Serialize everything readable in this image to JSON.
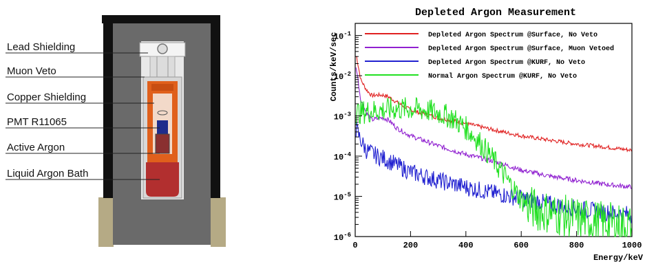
{
  "detector": {
    "labels": [
      "Lead Shielding",
      "Muon Veto",
      "Copper Shielding",
      "PMT R11065",
      "Active Argon",
      "Liquid Argon Bath"
    ],
    "colors": {
      "lead": "#666666",
      "outer_frame": "#111111",
      "copper": "#e0601c",
      "argon_bath": "#b22f2f",
      "ground": "#b5aa85",
      "pmt": "#1f2c8c"
    }
  },
  "chart_data": {
    "type": "line",
    "title": "Depleted Argon Measurement",
    "xlabel": "Energy/keV",
    "ylabel": "Counts/keV/sec",
    "xlim": [
      0,
      1000
    ],
    "ylim": [
      1e-06,
      0.2
    ],
    "yscale": "log",
    "x_ticks": [
      0,
      200,
      400,
      600,
      800,
      1000
    ],
    "y_ticks": [
      {
        "exp": -6,
        "label": "10",
        "sup": "-6"
      },
      {
        "exp": -5,
        "label": "10",
        "sup": "-5"
      },
      {
        "exp": -4,
        "label": "10",
        "sup": "-4"
      },
      {
        "exp": -3,
        "label": "10",
        "sup": "-3"
      },
      {
        "exp": -2,
        "label": "10",
        "sup": "-2"
      },
      {
        "exp": -1,
        "label": "10",
        "sup": "-1"
      }
    ],
    "legend_position": "top-right",
    "series": [
      {
        "name": "Depleted Argon Spectrum @Surface, No Veto",
        "color": "#e02020",
        "x": [
          5,
          20,
          40,
          60,
          80,
          100,
          120,
          150,
          200,
          300,
          400,
          500,
          600,
          700,
          800,
          900,
          1000
        ],
        "y": [
          0.03,
          0.008,
          0.0045,
          0.0032,
          0.0033,
          0.0033,
          0.003,
          0.0022,
          0.0014,
          0.0009,
          0.00065,
          0.00045,
          0.00032,
          0.00025,
          0.0002,
          0.00017,
          0.00014
        ]
      },
      {
        "name": "Depleted Argon Spectrum @Surface, Muon Vetoed",
        "color": "#9020d0",
        "x": [
          5,
          20,
          40,
          60,
          80,
          100,
          120,
          150,
          200,
          300,
          400,
          500,
          600,
          700,
          800,
          900,
          1000
        ],
        "y": [
          0.015,
          0.0025,
          0.0012,
          0.0008,
          0.00085,
          0.0009,
          0.0008,
          0.0005,
          0.00032,
          0.00018,
          0.00011,
          7.5e-05,
          4.5e-05,
          3.2e-05,
          2.5e-05,
          2e-05,
          1.7e-05
        ]
      },
      {
        "name": "Depleted Argon Spectrum @KURF, No Veto",
        "color": "#2020d0",
        "x": [
          5,
          20,
          40,
          60,
          80,
          100,
          150,
          200,
          300,
          400,
          500,
          600,
          700,
          800,
          900,
          1000
        ],
        "y": [
          0.00045,
          0.00025,
          0.00014,
          0.00012,
          0.0001,
          9e-05,
          6e-05,
          4e-05,
          2.5e-05,
          1.7e-05,
          1.2e-05,
          9e-06,
          6.5e-06,
          5e-06,
          4e-06,
          3.5e-06
        ]
      },
      {
        "name": "Normal Argon Spectrum @KURF, No Veto",
        "color": "#20e020",
        "x": [
          5,
          50,
          100,
          150,
          200,
          250,
          300,
          350,
          400,
          450,
          500,
          530,
          560,
          600,
          630,
          660,
          700,
          750,
          800,
          850,
          900,
          950,
          1000
        ],
        "y": [
          0.0012,
          0.0013,
          0.0014,
          0.0015,
          0.0015,
          0.0014,
          0.0012,
          0.0009,
          0.0005,
          0.00022,
          8e-05,
          4e-05,
          2e-05,
          8.5e-06,
          5.5e-06,
          4.5e-06,
          4e-06,
          3.3e-06,
          2.8e-06,
          2.5e-06,
          2.2e-06,
          2e-06,
          1.8e-06
        ]
      }
    ]
  }
}
